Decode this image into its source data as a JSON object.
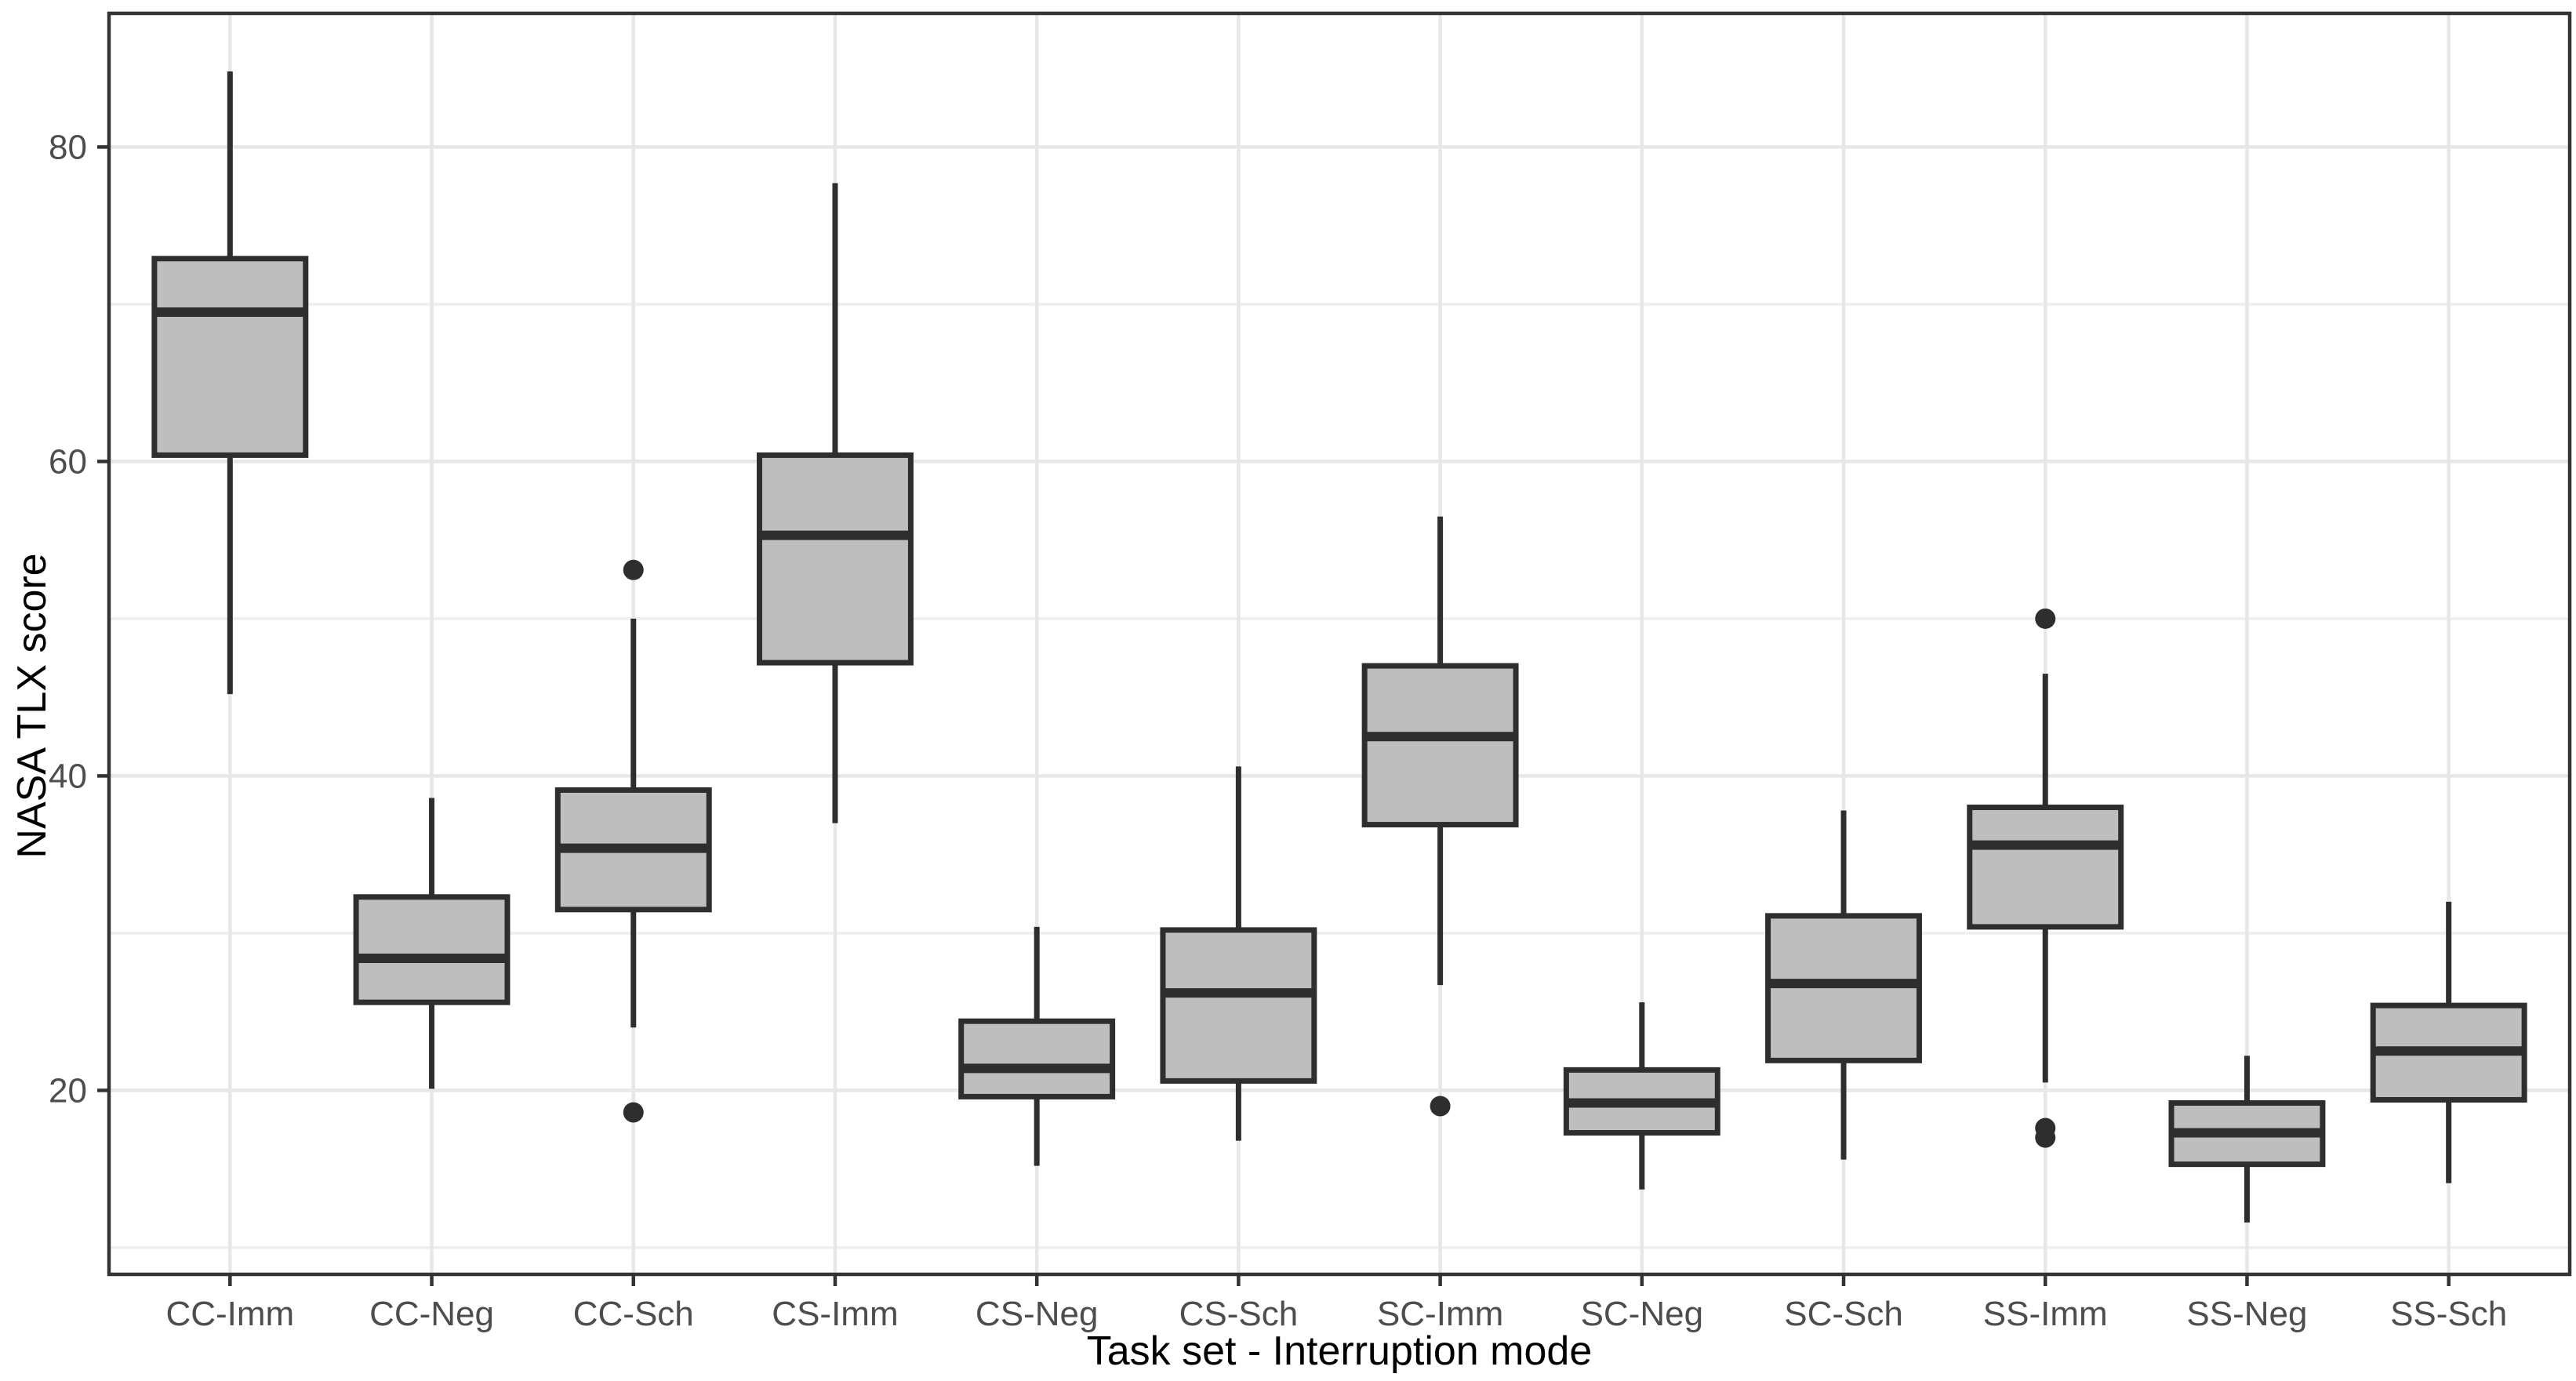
{
  "chart_data": {
    "type": "boxplot",
    "title": "",
    "xlabel": "Task set - Interruption mode",
    "ylabel": "NASA TLX score",
    "ylim": [
      8.3,
      88.5
    ],
    "y_ticks": [
      20,
      40,
      60,
      80
    ],
    "y_minor_gridlines": [
      10,
      30,
      50,
      70
    ],
    "grid": true,
    "legend": "none",
    "categories": [
      "CC-Imm",
      "CC-Neg",
      "CC-Sch",
      "CS-Imm",
      "CS-Neg",
      "CS-Sch",
      "SC-Imm",
      "SC-Neg",
      "SC-Sch",
      "SS-Imm",
      "SS-Neg",
      "SS-Sch"
    ],
    "boxes": [
      {
        "category": "CC-Imm",
        "whisker_low": 45.2,
        "q1": 60.4,
        "median": 69.5,
        "q3": 72.9,
        "whisker_high": 84.8,
        "outliers": []
      },
      {
        "category": "CC-Neg",
        "whisker_low": 20.1,
        "q1": 25.6,
        "median": 28.4,
        "q3": 32.3,
        "whisker_high": 38.6,
        "outliers": []
      },
      {
        "category": "CC-Sch",
        "whisker_low": 24.0,
        "q1": 31.5,
        "median": 35.4,
        "q3": 39.1,
        "whisker_high": 50.0,
        "outliers": [
          53.1,
          18.6
        ]
      },
      {
        "category": "CS-Imm",
        "whisker_low": 37.0,
        "q1": 47.2,
        "median": 55.3,
        "q3": 60.4,
        "whisker_high": 77.7,
        "outliers": []
      },
      {
        "category": "CS-Neg",
        "whisker_low": 15.2,
        "q1": 19.6,
        "median": 21.4,
        "q3": 24.4,
        "whisker_high": 30.4,
        "outliers": []
      },
      {
        "category": "CS-Sch",
        "whisker_low": 16.8,
        "q1": 20.6,
        "median": 26.2,
        "q3": 30.2,
        "whisker_high": 40.6,
        "outliers": []
      },
      {
        "category": "SC-Imm",
        "whisker_low": 26.7,
        "q1": 36.9,
        "median": 42.5,
        "q3": 47.0,
        "whisker_high": 56.5,
        "outliers": [
          19.0
        ]
      },
      {
        "category": "SC-Neg",
        "whisker_low": 13.7,
        "q1": 17.3,
        "median": 19.2,
        "q3": 21.3,
        "whisker_high": 25.6,
        "outliers": []
      },
      {
        "category": "SC-Sch",
        "whisker_low": 15.6,
        "q1": 21.9,
        "median": 26.8,
        "q3": 31.1,
        "whisker_high": 37.8,
        "outliers": []
      },
      {
        "category": "SS-Imm",
        "whisker_low": 20.5,
        "q1": 30.4,
        "median": 35.6,
        "q3": 38.0,
        "whisker_high": 46.5,
        "outliers": [
          50.0,
          17.6,
          17.0
        ]
      },
      {
        "category": "SS-Neg",
        "whisker_low": 11.6,
        "q1": 15.3,
        "median": 17.3,
        "q3": 19.2,
        "whisker_high": 22.2,
        "outliers": []
      },
      {
        "category": "SS-Sch",
        "whisker_low": 14.1,
        "q1": 19.4,
        "median": 22.5,
        "q3": 25.4,
        "whisker_high": 32.0,
        "outliers": []
      }
    ],
    "colors": {
      "background": "#ffffff",
      "panel_border": "#333333",
      "gridline_major": "#e7e7e7",
      "gridline_minor": "#eeeeee",
      "box_fill": "#bebebe",
      "box_stroke": "#2e2e2e",
      "outlier": "#2e2e2e",
      "tick_mark": "#333333",
      "axis_text": "#4d4d4d",
      "axis_title": "#000000"
    }
  }
}
